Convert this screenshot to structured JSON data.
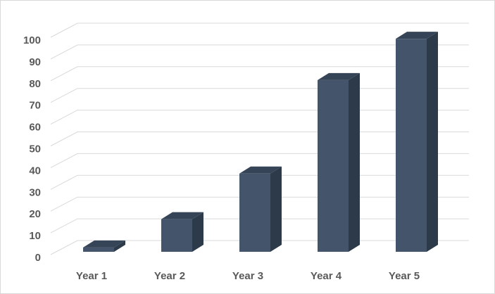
{
  "chart_data": {
    "type": "bar",
    "categories": [
      "Year 1",
      "Year 2",
      "Year 3",
      "Year 4",
      "Year 5"
    ],
    "values": [
      2,
      15,
      36,
      79,
      98
    ],
    "ylim": [
      0,
      100
    ],
    "y_ticks": [
      0,
      10,
      20,
      30,
      40,
      50,
      60,
      70,
      80,
      90,
      100
    ],
    "grid": true,
    "legend": "none",
    "title": "",
    "xlabel": "",
    "ylabel": "",
    "colors": {
      "bar_front": "#44546a",
      "bar_side": "#2d3a4a",
      "bar_top": "#364457",
      "grid": "#d9d9d9",
      "text": "#595959"
    }
  }
}
